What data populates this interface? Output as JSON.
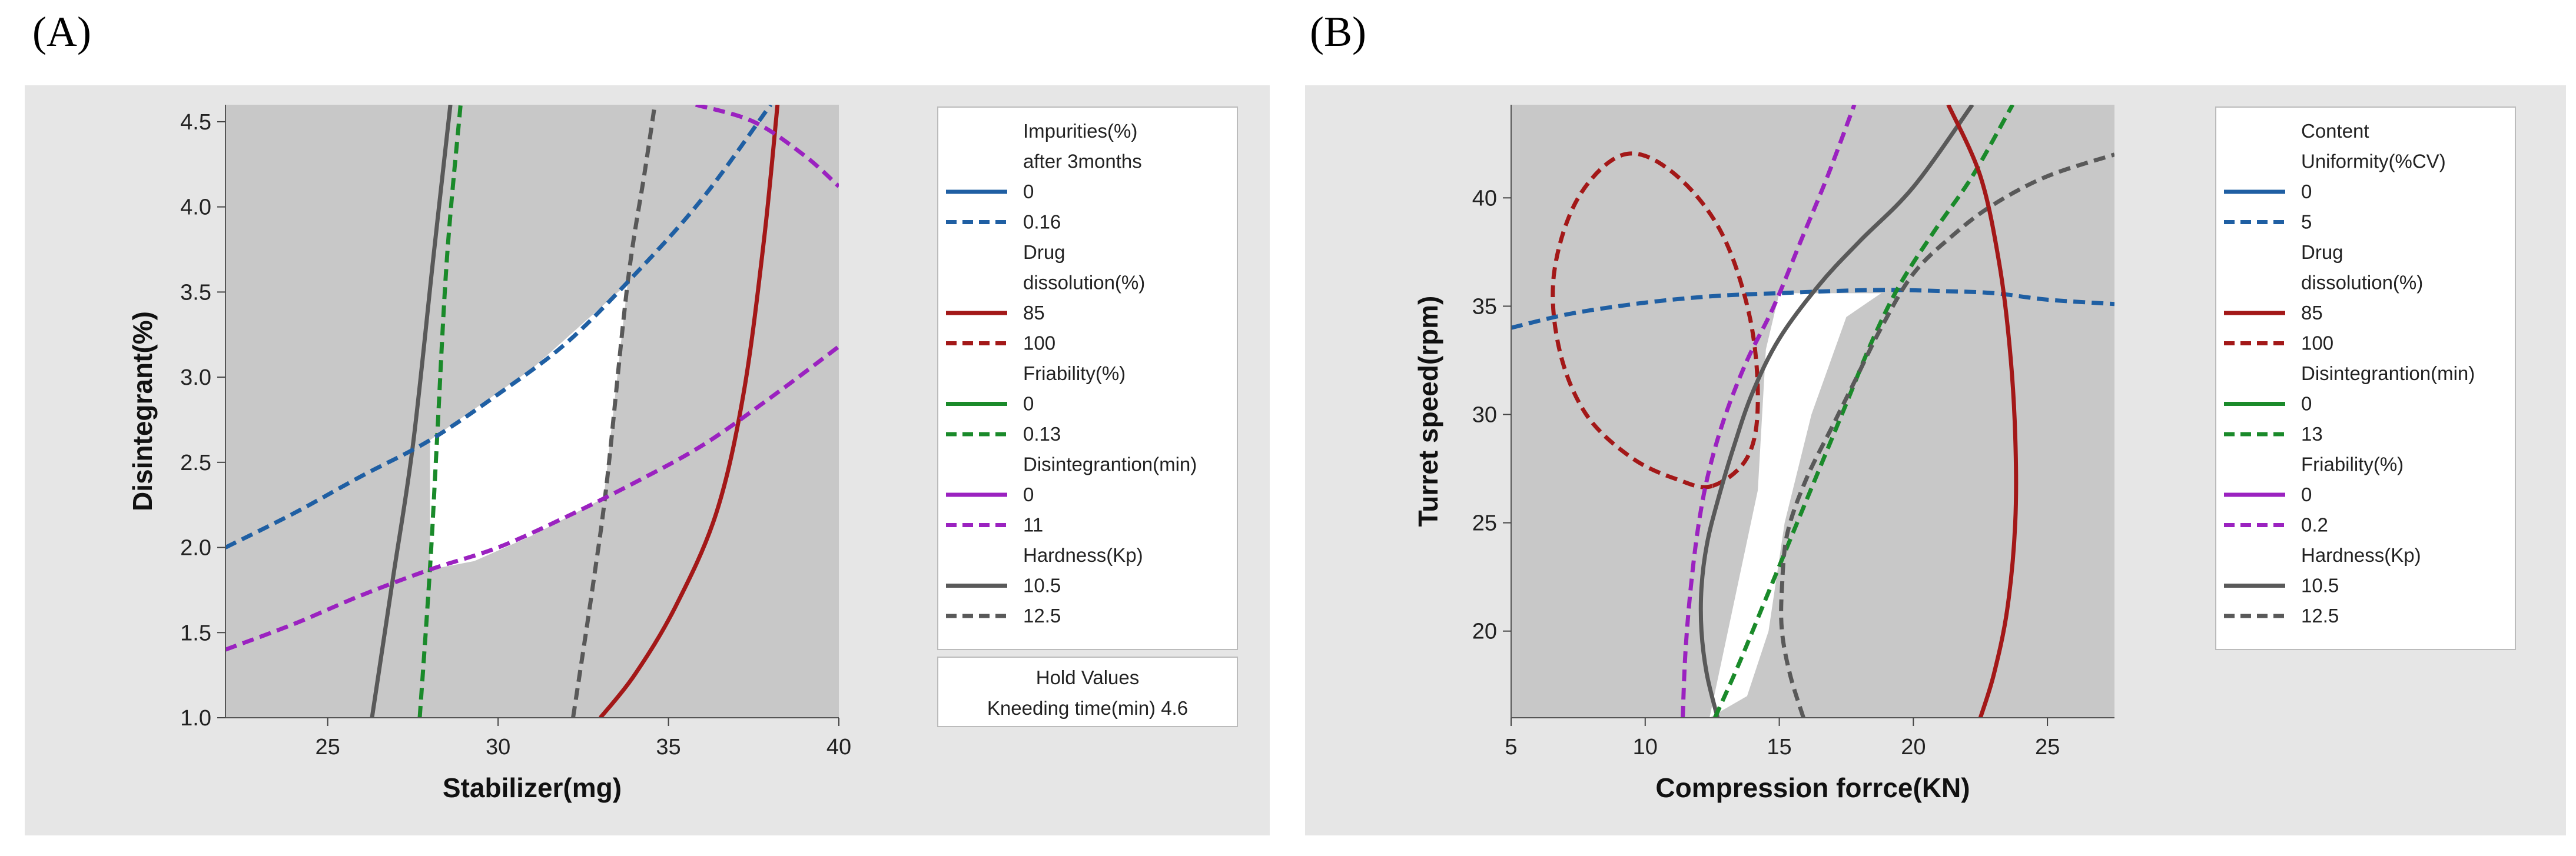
{
  "panels": [
    {
      "letter": "(A)",
      "chart_data": {
        "type": "line",
        "subtype": "overlaid contour plot",
        "xlabel": "Stabilizer(mg)",
        "ylabel": "Disintegrant(%)",
        "xlim": [
          22,
          40
        ],
        "ylim": [
          1.0,
          4.6
        ],
        "xticks": [
          "25",
          "30",
          "35",
          "40"
        ],
        "yticks": [
          "1.0",
          "1.5",
          "2.0",
          "2.5",
          "3.0",
          "3.5",
          "4.0",
          "4.5"
        ],
        "xtick_values": [
          25,
          30,
          35,
          40
        ],
        "ytick_values": [
          1.0,
          1.5,
          2.0,
          2.5,
          3.0,
          3.5,
          4.0,
          4.5
        ],
        "feasible_region": [
          [
            28.0,
            1.87
          ],
          [
            28.0,
            2.63
          ],
          [
            31.0,
            3.05
          ],
          [
            33.8,
            3.55
          ],
          [
            33.1,
            2.29
          ],
          [
            31.0,
            2.07
          ],
          [
            29.3,
            1.92
          ]
        ],
        "legend": [
          {
            "title": [
              "Impurities(%)",
              "after 3months"
            ],
            "entries": [
              {
                "label": "0",
                "color": "#1f5fa3",
                "dash": "solid"
              },
              {
                "label": "0.16",
                "color": "#1f5fa3",
                "dash": "dashed"
              }
            ]
          },
          {
            "title": [
              "Drug",
              "dissolution(%)"
            ],
            "entries": [
              {
                "label": "85",
                "color": "#a31818",
                "dash": "solid"
              },
              {
                "label": "100",
                "color": "#a31818",
                "dash": "dashed"
              }
            ]
          },
          {
            "title": [
              "Friability(%)"
            ],
            "entries": [
              {
                "label": "0",
                "color": "#1a8a2a",
                "dash": "solid"
              },
              {
                "label": "0.13",
                "color": "#1a8a2a",
                "dash": "dashed"
              }
            ]
          },
          {
            "title": [
              "Disintegrantion(min)"
            ],
            "entries": [
              {
                "label": "0",
                "color": "#9b22c0",
                "dash": "solid"
              },
              {
                "label": "11",
                "color": "#9b22c0",
                "dash": "dashed"
              }
            ]
          },
          {
            "title": [
              "Hardness(Kp)"
            ],
            "entries": [
              {
                "label": "10.5",
                "color": "#595959",
                "dash": "solid"
              },
              {
                "label": "12.5",
                "color": "#595959",
                "dash": "dashed"
              }
            ]
          }
        ],
        "hold_values": {
          "title": "Hold Values",
          "text": "Kneeding time(min)  4.6"
        },
        "series": [
          {
            "color": "#595959",
            "dash": "solid",
            "points": [
              [
                26.3,
                1.0
              ],
              [
                26.9,
                1.8
              ],
              [
                27.5,
                2.6
              ],
              [
                28.1,
                3.7
              ],
              [
                28.6,
                4.6
              ]
            ]
          },
          {
            "color": "#1a8a2a",
            "dash": "dashed",
            "points": [
              [
                27.7,
                1.0
              ],
              [
                28.0,
                1.87
              ],
              [
                28.2,
                2.6
              ],
              [
                28.5,
                3.7
              ],
              [
                28.9,
                4.6
              ]
            ]
          },
          {
            "color": "#595959",
            "dash": "dashed",
            "points": [
              [
                32.2,
                1.0
              ],
              [
                32.8,
                1.8
              ],
              [
                33.2,
                2.4
              ],
              [
                33.8,
                3.55
              ],
              [
                34.3,
                4.2
              ],
              [
                34.6,
                4.6
              ]
            ]
          },
          {
            "color": "#a31818",
            "dash": "solid",
            "points": [
              [
                33.0,
                1.0
              ],
              [
                34.0,
                1.25
              ],
              [
                35.2,
                1.65
              ],
              [
                36.4,
                2.2
              ],
              [
                37.2,
                2.9
              ],
              [
                37.8,
                3.8
              ],
              [
                38.2,
                4.6
              ]
            ]
          },
          {
            "color": "#1f5fa3",
            "dash": "dashed",
            "points": [
              [
                22.0,
                2.0
              ],
              [
                24.0,
                2.2
              ],
              [
                26.0,
                2.42
              ],
              [
                28.0,
                2.63
              ],
              [
                30.0,
                2.9
              ],
              [
                32.0,
                3.2
              ],
              [
                34.0,
                3.6
              ],
              [
                36.0,
                4.05
              ],
              [
                38.0,
                4.6
              ]
            ]
          },
          {
            "color": "#9b22c0",
            "dash": "dashed",
            "points": [
              [
                22.0,
                1.4
              ],
              [
                24.0,
                1.55
              ],
              [
                26.0,
                1.72
              ],
              [
                28.0,
                1.87
              ],
              [
                30.0,
                2.0
              ],
              [
                32.0,
                2.18
              ],
              [
                34.0,
                2.38
              ],
              [
                36.0,
                2.6
              ],
              [
                38.0,
                2.88
              ],
              [
                40.0,
                3.18
              ]
            ]
          },
          {
            "color": "#9b22c0",
            "dash": "dashed",
            "points": [
              [
                35.8,
                4.6
              ],
              [
                37.5,
                4.5
              ],
              [
                39.0,
                4.3
              ],
              [
                40.0,
                4.12
              ]
            ]
          }
        ]
      }
    },
    {
      "letter": "(B)",
      "chart_data": {
        "type": "line",
        "subtype": "overlaid contour plot",
        "xlabel": "Compression forrce(KN)",
        "ylabel": "Turret speed(rpm)",
        "xlim": [
          5,
          27.5
        ],
        "ylim": [
          16,
          44.3
        ],
        "xticks": [
          "5",
          "10",
          "15",
          "20",
          "25"
        ],
        "yticks": [
          "20",
          "25",
          "30",
          "35",
          "40"
        ],
        "xtick_values": [
          5,
          10,
          15,
          20,
          25
        ],
        "ytick_values": [
          20,
          25,
          30,
          35,
          40
        ],
        "feasible_region": [
          [
            12.4,
            16.0
          ],
          [
            14.2,
            26.5
          ],
          [
            14.5,
            33.0
          ],
          [
            15.0,
            35.6
          ],
          [
            18.8,
            35.6
          ],
          [
            17.5,
            34.5
          ],
          [
            16.2,
            30.0
          ],
          [
            15.2,
            25.0
          ],
          [
            14.6,
            20.0
          ],
          [
            13.8,
            17.0
          ]
        ],
        "legend": [
          {
            "title": [
              "Content",
              "Uniformity(%CV)"
            ],
            "entries": [
              {
                "label": "0",
                "color": "#1f5fa3",
                "dash": "solid"
              },
              {
                "label": "5",
                "color": "#1f5fa3",
                "dash": "dashed"
              }
            ]
          },
          {
            "title": [
              "Drug",
              "dissolution(%)"
            ],
            "entries": [
              {
                "label": "85",
                "color": "#a31818",
                "dash": "solid"
              },
              {
                "label": "100",
                "color": "#a31818",
                "dash": "dashed"
              }
            ]
          },
          {
            "title": [
              "Disintegrantion(min)"
            ],
            "entries": [
              {
                "label": "0",
                "color": "#1a8a2a",
                "dash": "solid"
              },
              {
                "label": "13",
                "color": "#1a8a2a",
                "dash": "dashed"
              }
            ]
          },
          {
            "title": [
              "Friability(%)"
            ],
            "entries": [
              {
                "label": "0",
                "color": "#9b22c0",
                "dash": "solid"
              },
              {
                "label": "0.2",
                "color": "#9b22c0",
                "dash": "dashed"
              }
            ]
          },
          {
            "title": [
              "Hardness(Kp)"
            ],
            "entries": [
              {
                "label": "10.5",
                "color": "#595959",
                "dash": "solid"
              },
              {
                "label": "12.5",
                "color": "#595959",
                "dash": "dashed"
              }
            ]
          }
        ],
        "series": [
          {
            "color": "#1f5fa3",
            "dash": "dashed",
            "points": [
              [
                5.0,
                34.0
              ],
              [
                7.0,
                34.6
              ],
              [
                9.0,
                35.0
              ],
              [
                11.0,
                35.3
              ],
              [
                13.0,
                35.5
              ],
              [
                15.0,
                35.6
              ],
              [
                17.0,
                35.7
              ],
              [
                19.0,
                35.75
              ],
              [
                21.0,
                35.7
              ],
              [
                23.0,
                35.6
              ],
              [
                25.0,
                35.3
              ],
              [
                27.5,
                35.1
              ]
            ]
          },
          {
            "color": "#a31818",
            "dash": "dashed",
            "closed": true,
            "points": [
              [
                12.5,
                26.7
              ],
              [
                11.2,
                27.0
              ],
              [
                9.5,
                28.0
              ],
              [
                7.8,
                30.0
              ],
              [
                6.8,
                33.0
              ],
              [
                6.6,
                36.5
              ],
              [
                7.5,
                40.0
              ],
              [
                9.2,
                42.0
              ],
              [
                11.0,
                41.2
              ],
              [
                12.8,
                38.5
              ],
              [
                13.9,
                34.5
              ],
              [
                14.2,
                30.5
              ],
              [
                13.8,
                28.0
              ]
            ]
          },
          {
            "color": "#9b22c0",
            "dash": "dashed",
            "points": [
              [
                11.4,
                16.0
              ],
              [
                11.5,
                19.0
              ],
              [
                11.7,
                22.0
              ],
              [
                12.0,
                25.0
              ],
              [
                12.4,
                27.5
              ],
              [
                13.0,
                30.0
              ],
              [
                13.8,
                32.5
              ],
              [
                14.8,
                35.0
              ],
              [
                15.8,
                38.0
              ],
              [
                16.8,
                41.0
              ],
              [
                17.8,
                44.3
              ]
            ]
          },
          {
            "color": "#595959",
            "dash": "solid",
            "points": [
              [
                12.7,
                16.0
              ],
              [
                12.3,
                18.0
              ],
              [
                12.1,
                20.0
              ],
              [
                12.1,
                22.0
              ],
              [
                12.3,
                24.0
              ],
              [
                12.7,
                26.0
              ],
              [
                13.3,
                28.5
              ],
              [
                14.0,
                31.0
              ],
              [
                15.0,
                33.5
              ],
              [
                16.5,
                36.0
              ],
              [
                18.0,
                38.0
              ],
              [
                20.0,
                40.5
              ],
              [
                22.2,
                44.3
              ]
            ]
          },
          {
            "color": "#1a8a2a",
            "dash": "dashed",
            "points": [
              [
                12.6,
                16.0
              ],
              [
                13.5,
                18.5
              ],
              [
                14.5,
                21.5
              ],
              [
                15.5,
                24.5
              ],
              [
                16.5,
                27.5
              ],
              [
                17.5,
                30.5
              ],
              [
                18.5,
                33.5
              ],
              [
                19.5,
                36.0
              ],
              [
                20.8,
                38.5
              ],
              [
                22.2,
                41.0
              ],
              [
                23.7,
                44.3
              ]
            ]
          },
          {
            "color": "#595959",
            "dash": "dashed",
            "points": [
              [
                15.9,
                16.0
              ],
              [
                15.4,
                18.0
              ],
              [
                15.1,
                20.0
              ],
              [
                15.1,
                22.0
              ],
              [
                15.3,
                24.5
              ],
              [
                16.0,
                27.0
              ],
              [
                17.0,
                29.5
              ],
              [
                17.8,
                31.5
              ],
              [
                18.8,
                34.0
              ],
              [
                20.0,
                36.5
              ],
              [
                21.5,
                38.3
              ],
              [
                23.0,
                39.7
              ],
              [
                25.0,
                41.0
              ],
              [
                27.5,
                42.0
              ]
            ]
          },
          {
            "color": "#a31818",
            "dash": "solid",
            "points": [
              [
                21.3,
                44.3
              ],
              [
                22.5,
                41.0
              ],
              [
                23.2,
                37.0
              ],
              [
                23.6,
                33.0
              ],
              [
                23.8,
                29.0
              ],
              [
                23.8,
                25.0
              ],
              [
                23.5,
                21.0
              ],
              [
                23.0,
                18.0
              ],
              [
                22.5,
                16.0
              ]
            ]
          }
        ]
      }
    }
  ]
}
